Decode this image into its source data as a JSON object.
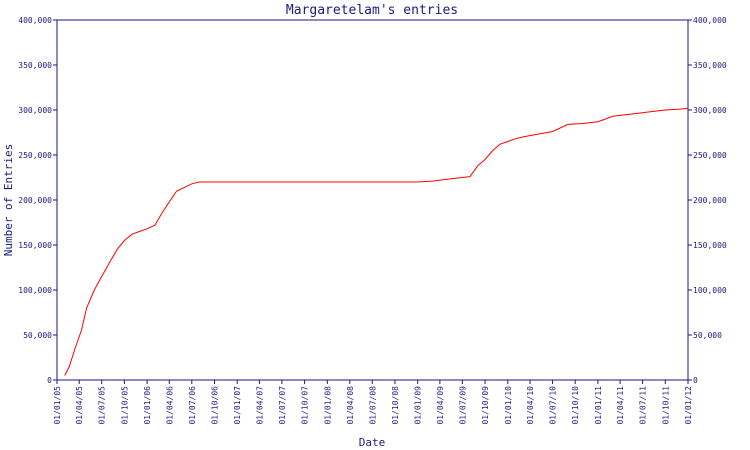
{
  "chart_data": {
    "type": "line",
    "title": "Margaretelam's entries",
    "xlabel": "Date",
    "ylabel": "Number of Entries",
    "x_ticks": [
      "01/01/05",
      "01/04/05",
      "01/07/05",
      "01/10/05",
      "01/01/06",
      "01/04/06",
      "01/07/06",
      "01/10/06",
      "01/01/07",
      "01/04/07",
      "01/07/07",
      "01/10/07",
      "01/01/08",
      "01/04/08",
      "01/07/08",
      "01/10/08",
      "01/01/09",
      "01/04/09",
      "01/07/09",
      "01/10/09",
      "01/01/10",
      "01/04/10",
      "01/07/10",
      "01/10/10",
      "01/01/11",
      "01/04/11",
      "01/07/11",
      "01/10/11",
      "01/01/12"
    ],
    "y_ticks": [
      "0",
      "50,000",
      "100,000",
      "150,000",
      "200,000",
      "250,000",
      "300,000",
      "350,000",
      "400,000"
    ],
    "ylim": [
      0,
      400000
    ],
    "grid": false,
    "axes": "left-and-right",
    "line_color": "#ff0000",
    "axis_color": "#1a1a80",
    "series": [
      {
        "x": [
          "2005-02-01",
          "2005-02-20",
          "2005-03-15",
          "2005-04-10",
          "2005-05-01",
          "2005-06-01",
          "2005-07-01",
          "2005-08-01",
          "2005-09-01",
          "2005-10-01",
          "2005-11-01",
          "2005-12-01",
          "2006-01-01",
          "2006-02-01",
          "2006-03-01",
          "2006-04-01",
          "2006-05-01",
          "2006-06-01",
          "2006-07-01",
          "2006-08-01",
          "2007-01-01",
          "2008-01-01",
          "2008-11-01",
          "2009-01-01",
          "2009-03-01",
          "2009-05-01",
          "2009-07-01",
          "2009-08-01",
          "2009-09-01",
          "2009-10-01",
          "2009-11-01",
          "2009-12-01",
          "2010-01-01",
          "2010-02-01",
          "2010-03-01",
          "2010-05-01",
          "2010-07-01",
          "2010-08-01",
          "2010-09-01",
          "2010-11-01",
          "2011-01-01",
          "2011-02-01",
          "2011-03-01",
          "2011-05-01",
          "2011-06-01",
          "2011-07-01",
          "2011-08-01",
          "2011-10-01",
          "2011-12-01",
          "2012-01-01"
        ],
        "y": [
          5000,
          15000,
          35000,
          55000,
          80000,
          100000,
          115000,
          130000,
          145000,
          155000,
          162000,
          165000,
          168000,
          172000,
          185000,
          198000,
          210000,
          214000,
          218000,
          220000,
          220000,
          220000,
          220000,
          220000,
          221000,
          223000,
          225000,
          226000,
          238000,
          245000,
          255000,
          262000,
          265000,
          268000,
          270000,
          273000,
          276000,
          280000,
          284000,
          285000,
          287000,
          290000,
          293000,
          295000,
          296000,
          297000,
          298000,
          300000,
          301000,
          302000
        ]
      }
    ]
  }
}
